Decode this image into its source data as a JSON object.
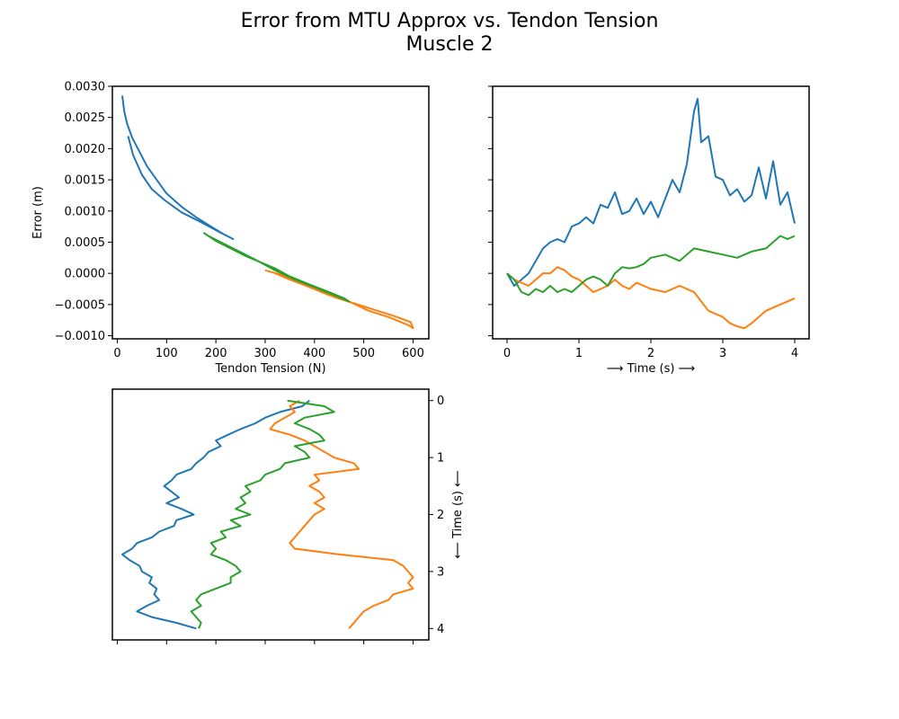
{
  "figure": {
    "title": "Error from MTU Approx vs. Tendon Tension",
    "subtitle": "Muscle 2"
  },
  "colors": {
    "blue": "#1f77b4",
    "orange": "#ff7f0e",
    "green": "#2ca02c"
  },
  "chart_data": [
    {
      "type": "line",
      "panel": "top-left",
      "xlabel": "Tendon Tension (N)",
      "ylabel": "Error (m)",
      "xlim": [
        -10,
        632
      ],
      "ylim": [
        -0.00105,
        0.003
      ],
      "xticks": [
        0,
        100,
        200,
        300,
        400,
        500,
        600
      ],
      "yticks": [
        -0.001,
        -0.0005,
        0.0,
        0.0005,
        0.001,
        0.0015,
        0.002,
        0.0025,
        0.003
      ],
      "ytick_labels": [
        "−0.0010",
        "−0.0005",
        "0.0000",
        "0.0005",
        "0.0010",
        "0.0015",
        "0.0020",
        "0.0025",
        "0.0030"
      ],
      "grid": false,
      "series": [
        {
          "color": "#1f77b4",
          "points": [
            [
              10,
              0.00285
            ],
            [
              14,
              0.0026
            ],
            [
              20,
              0.0024
            ],
            [
              30,
              0.00218
            ],
            [
              45,
              0.00195
            ],
            [
              60,
              0.00172
            ],
            [
              80,
              0.0015
            ],
            [
              100,
              0.00128
            ],
            [
              130,
              0.00107
            ],
            [
              160,
              0.0009
            ],
            [
              190,
              0.00075
            ],
            [
              215,
              0.00063
            ],
            [
              235,
              0.00055
            ],
            [
              210,
              0.00065
            ],
            [
              170,
              0.00082
            ],
            [
              130,
              0.00098
            ],
            [
              95,
              0.00118
            ],
            [
              70,
              0.00135
            ],
            [
              50,
              0.00158
            ],
            [
              32,
              0.0019
            ],
            [
              22,
              0.0022
            ]
          ]
        },
        {
          "color": "#ff7f0e",
          "points": [
            [
              300,
              5e-05
            ],
            [
              330,
              -2e-05
            ],
            [
              360,
              -0.0001
            ],
            [
              400,
              -0.00022
            ],
            [
              440,
              -0.00038
            ],
            [
              480,
              -0.00048
            ],
            [
              520,
              -0.00058
            ],
            [
              560,
              -0.00068
            ],
            [
              595,
              -0.00078
            ],
            [
              600,
              -0.00088
            ],
            [
              590,
              -0.00083
            ],
            [
              550,
              -0.0007
            ],
            [
              510,
              -0.0006
            ],
            [
              470,
              -0.00045
            ],
            [
              430,
              -0.00035
            ],
            [
              390,
              -0.00022
            ],
            [
              350,
              -0.0001
            ],
            [
              320,
              0.0
            ]
          ]
        },
        {
          "color": "#2ca02c",
          "points": [
            [
              175,
              0.00065
            ],
            [
              200,
              0.00052
            ],
            [
              230,
              0.0004
            ],
            [
              260,
              0.00028
            ],
            [
              290,
              0.00018
            ],
            [
              320,
              8e-05
            ],
            [
              350,
              -5e-05
            ],
            [
              390,
              -0.00018
            ],
            [
              430,
              -0.0003
            ],
            [
              460,
              -0.0004
            ],
            [
              470,
              -0.00045
            ],
            [
              440,
              -0.00035
            ],
            [
              400,
              -0.00022
            ],
            [
              360,
              -0.0001
            ],
            [
              320,
              5e-05
            ],
            [
              280,
              0.00022
            ],
            [
              240,
              0.00038
            ],
            [
              205,
              0.00052
            ],
            [
              180,
              0.00062
            ]
          ]
        }
      ]
    },
    {
      "type": "line",
      "panel": "top-right",
      "xlabel": "⟶ Time (s) ⟶",
      "xlim": [
        -0.2,
        4.2
      ],
      "ylim": [
        -0.00105,
        0.003
      ],
      "xticks": [
        0,
        1,
        2,
        3,
        4
      ],
      "grid": false,
      "series": [
        {
          "color": "#1f77b4",
          "x": [
            0,
            0.1,
            0.2,
            0.3,
            0.4,
            0.5,
            0.6,
            0.7,
            0.8,
            0.9,
            1.0,
            1.1,
            1.2,
            1.3,
            1.4,
            1.5,
            1.6,
            1.7,
            1.8,
            1.9,
            2.0,
            2.1,
            2.2,
            2.3,
            2.4,
            2.5,
            2.6,
            2.65,
            2.7,
            2.8,
            2.9,
            3.0,
            3.1,
            3.2,
            3.3,
            3.4,
            3.5,
            3.6,
            3.7,
            3.8,
            3.9,
            4.0
          ],
          "y": [
            0.0,
            -0.0002,
            -0.0001,
            0.0,
            0.0002,
            0.0004,
            0.0005,
            0.00055,
            0.0005,
            0.00075,
            0.0008,
            0.0009,
            0.0008,
            0.0011,
            0.00105,
            0.0013,
            0.00095,
            0.001,
            0.0012,
            0.00095,
            0.00115,
            0.0009,
            0.0012,
            0.0015,
            0.0013,
            0.00175,
            0.0026,
            0.0028,
            0.0021,
            0.0022,
            0.00155,
            0.0015,
            0.00125,
            0.00135,
            0.00115,
            0.00125,
            0.0017,
            0.0012,
            0.0018,
            0.0011,
            0.0013,
            0.0008
          ]
        },
        {
          "color": "#ff7f0e",
          "x": [
            0,
            0.1,
            0.2,
            0.3,
            0.4,
            0.5,
            0.6,
            0.7,
            0.8,
            0.9,
            1.0,
            1.1,
            1.2,
            1.3,
            1.4,
            1.5,
            1.6,
            1.7,
            1.8,
            1.9,
            2.0,
            2.2,
            2.4,
            2.6,
            2.8,
            3.0,
            3.1,
            3.2,
            3.3,
            3.4,
            3.5,
            3.6,
            3.7,
            3.8,
            3.9,
            4.0
          ],
          "y": [
            0.0,
            -0.0001,
            -0.00015,
            -0.0002,
            -0.0001,
            0.0,
            0.0,
            0.0001,
            5e-05,
            -5e-05,
            -0.0001,
            -0.0002,
            -0.0003,
            -0.00025,
            -0.0002,
            -0.0001,
            -0.0002,
            -0.00025,
            -0.00015,
            -0.0002,
            -0.00025,
            -0.0003,
            -0.0002,
            -0.0003,
            -0.0006,
            -0.0007,
            -0.0008,
            -0.00085,
            -0.00088,
            -0.0008,
            -0.0007,
            -0.0006,
            -0.00055,
            -0.0005,
            -0.00045,
            -0.0004
          ]
        },
        {
          "color": "#2ca02c",
          "x": [
            0,
            0.1,
            0.2,
            0.3,
            0.4,
            0.5,
            0.6,
            0.7,
            0.8,
            0.9,
            1.0,
            1.1,
            1.2,
            1.3,
            1.4,
            1.5,
            1.6,
            1.7,
            1.8,
            1.9,
            2.0,
            2.2,
            2.4,
            2.6,
            2.8,
            3.0,
            3.2,
            3.4,
            3.6,
            3.8,
            3.9,
            4.0
          ],
          "y": [
            0.0,
            -0.0001,
            -0.0003,
            -0.00035,
            -0.00025,
            -0.0003,
            -0.0002,
            -0.0003,
            -0.00025,
            -0.0003,
            -0.0002,
            -0.0001,
            -5e-05,
            -0.0001,
            -0.0002,
            0.0,
            0.0001,
            8e-05,
            0.0001,
            0.00015,
            0.00025,
            0.0003,
            0.0002,
            0.0004,
            0.00035,
            0.0003,
            0.00025,
            0.00035,
            0.0004,
            0.0006,
            0.00055,
            0.0006
          ]
        }
      ]
    },
    {
      "type": "line",
      "panel": "bottom-left",
      "ylabel": "⟵ Time (s) ⟵",
      "xlim": [
        -10,
        632
      ],
      "ylim": [
        4.2,
        -0.2
      ],
      "yticks": [
        0,
        1,
        2,
        3,
        4
      ],
      "xticks": [
        0,
        100,
        200,
        300,
        400,
        500,
        600
      ],
      "grid": false,
      "series": [
        {
          "color": "#1f77b4",
          "t": [
            0,
            0.1,
            0.2,
            0.3,
            0.4,
            0.5,
            0.6,
            0.7,
            0.8,
            0.9,
            1.0,
            1.1,
            1.2,
            1.3,
            1.4,
            1.5,
            1.6,
            1.7,
            1.8,
            1.9,
            2.0,
            2.1,
            2.2,
            2.3,
            2.4,
            2.5,
            2.6,
            2.7,
            2.8,
            2.9,
            3.0,
            3.1,
            3.2,
            3.3,
            3.4,
            3.5,
            3.6,
            3.7,
            3.8,
            3.9,
            4.0
          ],
          "x": [
            390,
            375,
            330,
            300,
            280,
            250,
            225,
            200,
            210,
            185,
            175,
            160,
            150,
            120,
            110,
            95,
            110,
            125,
            100,
            130,
            155,
            120,
            115,
            85,
            70,
            40,
            30,
            10,
            25,
            45,
            50,
            70,
            65,
            80,
            75,
            85,
            60,
            40,
            70,
            120,
            160
          ]
        },
        {
          "color": "#ff7f0e",
          "t": [
            0,
            0.1,
            0.2,
            0.3,
            0.4,
            0.5,
            0.6,
            0.7,
            0.8,
            0.9,
            1.0,
            1.1,
            1.2,
            1.3,
            1.4,
            1.5,
            1.6,
            1.7,
            1.8,
            1.9,
            2.0,
            2.1,
            2.2,
            2.3,
            2.4,
            2.5,
            2.6,
            2.7,
            2.8,
            2.9,
            3.0,
            3.1,
            3.2,
            3.3,
            3.4,
            3.5,
            3.6,
            3.7,
            3.8,
            3.9,
            4.0
          ],
          "x": [
            370,
            350,
            360,
            340,
            320,
            310,
            350,
            380,
            400,
            420,
            440,
            480,
            490,
            400,
            410,
            390,
            410,
            420,
            400,
            420,
            400,
            390,
            380,
            370,
            360,
            350,
            360,
            450,
            560,
            580,
            590,
            600,
            590,
            600,
            560,
            550,
            520,
            500,
            490,
            480,
            470
          ]
        },
        {
          "color": "#2ca02c",
          "t": [
            0,
            0.1,
            0.2,
            0.3,
            0.4,
            0.5,
            0.6,
            0.7,
            0.8,
            0.9,
            1.0,
            1.1,
            1.2,
            1.3,
            1.4,
            1.5,
            1.6,
            1.7,
            1.8,
            1.9,
            2.0,
            2.1,
            2.2,
            2.3,
            2.4,
            2.5,
            2.6,
            2.7,
            2.8,
            2.9,
            3.0,
            3.1,
            3.2,
            3.3,
            3.4,
            3.5,
            3.6,
            3.7,
            3.8,
            3.9,
            4.0
          ],
          "x": [
            345,
            420,
            440,
            380,
            360,
            390,
            410,
            420,
            360,
            380,
            390,
            340,
            330,
            300,
            290,
            260,
            270,
            250,
            260,
            240,
            270,
            230,
            250,
            210,
            220,
            190,
            200,
            190,
            220,
            240,
            250,
            230,
            230,
            200,
            170,
            160,
            170,
            150,
            160,
            170,
            165
          ]
        }
      ]
    }
  ]
}
